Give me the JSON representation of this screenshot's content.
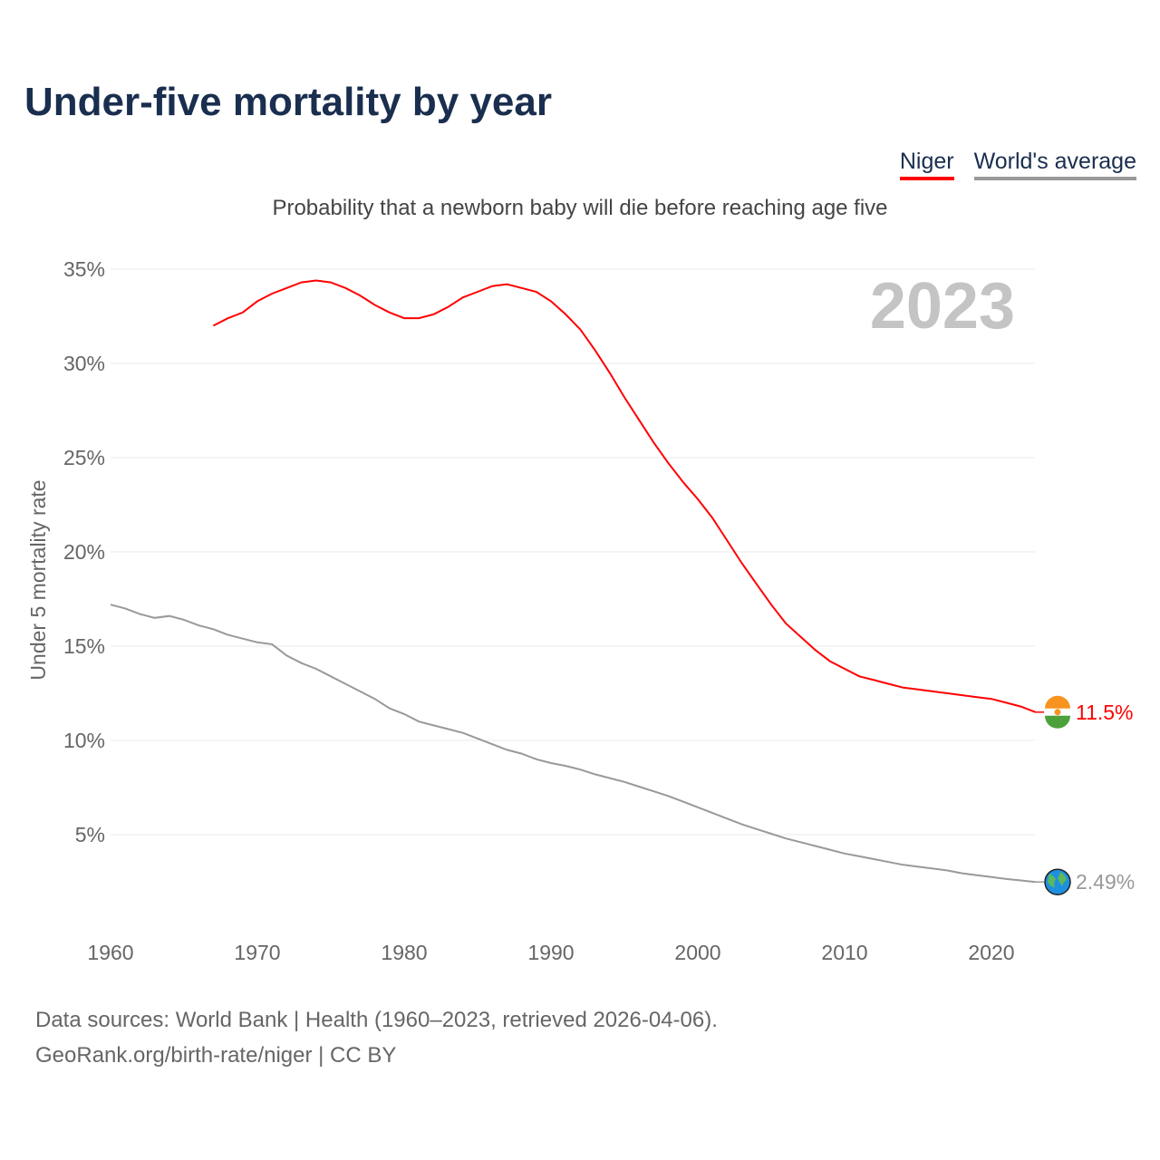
{
  "title": "Under-five mortality by year",
  "legend": [
    {
      "label": "Niger",
      "color": "#ff0000"
    },
    {
      "label": "World's average",
      "color": "#999999"
    }
  ],
  "source_line1": "Data sources: World Bank | Health (1960–2023, retrieved 2026-04-06).",
  "source_line2": "GeoRank.org/birth-rate/niger | CC BY",
  "chart_data": {
    "type": "line",
    "subtitle": "Probability that a newborn baby will die before reaching age five",
    "ylabel": "Under 5 mortality rate",
    "year_label": "2023",
    "xlim": [
      1960,
      2023
    ],
    "ylim": [
      0,
      35
    ],
    "xticks": [
      "1960",
      "1970",
      "1980",
      "1990",
      "2000",
      "2010",
      "2020"
    ],
    "yticks": [
      "5%",
      "10%",
      "15%",
      "20%",
      "25%",
      "30%",
      "35%"
    ],
    "grid": true,
    "series": [
      {
        "name": "Niger",
        "color": "#ff0000",
        "end_label": "11.5%",
        "start_year": 1967,
        "values": [
          32.0,
          32.4,
          32.7,
          33.3,
          33.7,
          34.0,
          34.3,
          34.4,
          34.3,
          34.0,
          33.6,
          33.1,
          32.7,
          32.4,
          32.4,
          32.6,
          33.0,
          33.5,
          33.8,
          34.1,
          34.2,
          34.0,
          33.8,
          33.3,
          32.6,
          31.8,
          30.7,
          29.5,
          28.2,
          27.0,
          25.8,
          24.7,
          23.7,
          22.8,
          21.8,
          20.6,
          19.4,
          18.3,
          17.2,
          16.2,
          15.5,
          14.8,
          14.2,
          13.8,
          13.4,
          13.2,
          13.0,
          12.8,
          12.7,
          12.6,
          12.5,
          12.4,
          12.3,
          12.2,
          12.0,
          11.8,
          11.5
        ]
      },
      {
        "name": "World's average",
        "color": "#999999",
        "end_label": "2.49%",
        "start_year": 1960,
        "values": [
          17.2,
          17.0,
          16.7,
          16.5,
          16.6,
          16.4,
          16.1,
          15.9,
          15.6,
          15.4,
          15.2,
          15.1,
          14.5,
          14.1,
          13.8,
          13.4,
          13.0,
          12.6,
          12.2,
          11.7,
          11.4,
          11.0,
          10.8,
          10.6,
          10.4,
          10.1,
          9.8,
          9.5,
          9.3,
          9.0,
          8.8,
          8.65,
          8.45,
          8.2,
          8.0,
          7.8,
          7.55,
          7.3,
          7.05,
          6.75,
          6.45,
          6.15,
          5.85,
          5.55,
          5.3,
          5.05,
          4.8,
          4.6,
          4.4,
          4.2,
          4.0,
          3.85,
          3.7,
          3.55,
          3.4,
          3.3,
          3.2,
          3.1,
          2.95,
          2.85,
          2.75,
          2.65,
          2.57,
          2.49
        ]
      }
    ]
  }
}
